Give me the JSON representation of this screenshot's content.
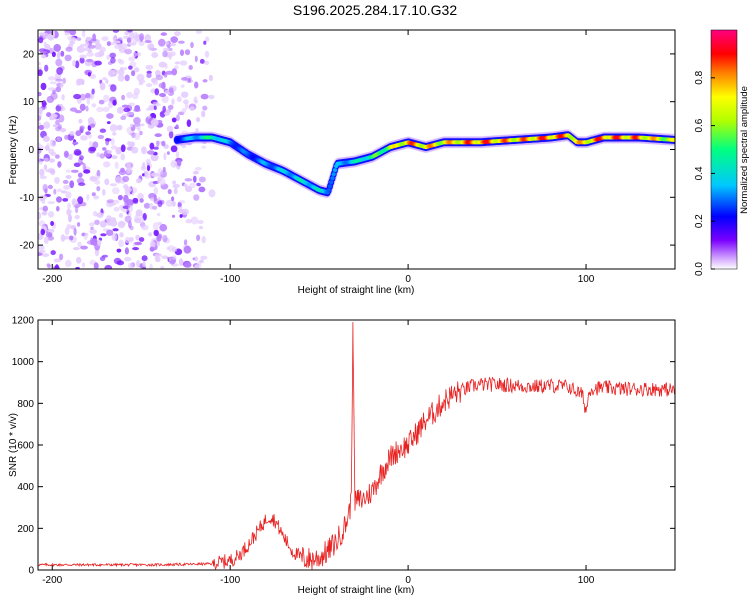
{
  "title": "S196.2025.284.17.10.G32",
  "chart_data": [
    {
      "type": "heatmap",
      "title": "S196.2025.284.17.10.G32",
      "xlabel": "Height of straight line (km)",
      "ylabel": "Frequency (Hz)",
      "xlim": [
        -208,
        150
      ],
      "ylim": [
        -25,
        25
      ],
      "xticks": [
        -200,
        -100,
        0,
        100
      ],
      "xtick_labels": [
        "-200",
        "-100",
        "0",
        "100"
      ],
      "yticks": [
        -20,
        -10,
        0,
        10,
        20
      ],
      "ytick_labels": [
        "-20",
        "-10",
        "0",
        "10",
        "20"
      ],
      "colorbar": {
        "label": "Normalized spectral amplitude",
        "range": [
          0,
          1
        ],
        "ticks": [
          0,
          0.2,
          0.4,
          0.6,
          0.8
        ],
        "tick_labels": [
          "0.0",
          "0.2",
          "0.4",
          "0.6",
          "0.8"
        ],
        "colors": [
          "#ffffff",
          "#cc99ff",
          "#7a00ff",
          "#0000ff",
          "#00c8ff",
          "#00ff80",
          "#b0ff00",
          "#ffff00",
          "#ff8000",
          "#ff0000",
          "#ff0080"
        ]
      },
      "ridge": {
        "x": [
          -130,
          -120,
          -110,
          -100,
          -90,
          -80,
          -70,
          -60,
          -50,
          -45,
          -40,
          -30,
          -20,
          -10,
          0,
          10,
          20,
          40,
          60,
          80,
          90,
          95,
          100,
          110,
          130,
          150
        ],
        "y": [
          2,
          2.5,
          2.5,
          1.5,
          -1,
          -3,
          -4.5,
          -6.5,
          -8.5,
          -9,
          -3,
          -2.5,
          -1.5,
          0.5,
          1.5,
          0.5,
          1.5,
          1.5,
          2,
          2.5,
          3,
          1.5,
          1.5,
          2.5,
          2.5,
          2
        ],
        "amplitude": [
          0.3,
          0.4,
          0.55,
          0.35,
          0.3,
          0.35,
          0.4,
          0.45,
          0.45,
          0.4,
          0.35,
          0.45,
          0.55,
          0.7,
          0.9,
          0.85,
          0.8,
          0.95,
          0.85,
          0.95,
          0.9,
          0.8,
          0.85,
          0.95,
          0.9,
          0.7
        ]
      },
      "noise_region_x": [
        -208,
        -110
      ]
    },
    {
      "type": "line",
      "xlabel": "Height of straight line (km)",
      "ylabel": "SNR (10 * v/v)",
      "xlim": [
        -208,
        150
      ],
      "ylim": [
        0,
        1200
      ],
      "xticks": [
        -200,
        -100,
        0,
        100
      ],
      "xtick_labels": [
        "-200",
        "-100",
        "0",
        "100"
      ],
      "yticks": [
        0,
        200,
        400,
        600,
        800,
        1000,
        1200
      ],
      "ytick_labels": [
        "0",
        "200",
        "400",
        "600",
        "800",
        "1000",
        "1200"
      ],
      "color": "#e82020",
      "series": [
        {
          "name": "SNR",
          "x": [
            -208,
            -200,
            -180,
            -160,
            -140,
            -120,
            -110,
            -100,
            -95,
            -90,
            -85,
            -80,
            -78,
            -75,
            -70,
            -65,
            -60,
            -55,
            -50,
            -45,
            -40,
            -35,
            -32,
            -31,
            -30,
            -25,
            -20,
            -15,
            -10,
            -5,
            0,
            5,
            10,
            15,
            20,
            25,
            30,
            35,
            40,
            50,
            60,
            70,
            80,
            90,
            98,
            100,
            102,
            110,
            120,
            130,
            140,
            150
          ],
          "y": [
            25,
            25,
            25,
            25,
            25,
            28,
            30,
            45,
            70,
            120,
            180,
            240,
            260,
            240,
            160,
            90,
            60,
            50,
            60,
            90,
            140,
            220,
            320,
            1190,
            330,
            340,
            380,
            470,
            540,
            580,
            600,
            660,
            720,
            760,
            810,
            840,
            860,
            880,
            890,
            890,
            885,
            880,
            885,
            880,
            840,
            760,
            870,
            875,
            870,
            870,
            868,
            865
          ]
        }
      ]
    }
  ]
}
